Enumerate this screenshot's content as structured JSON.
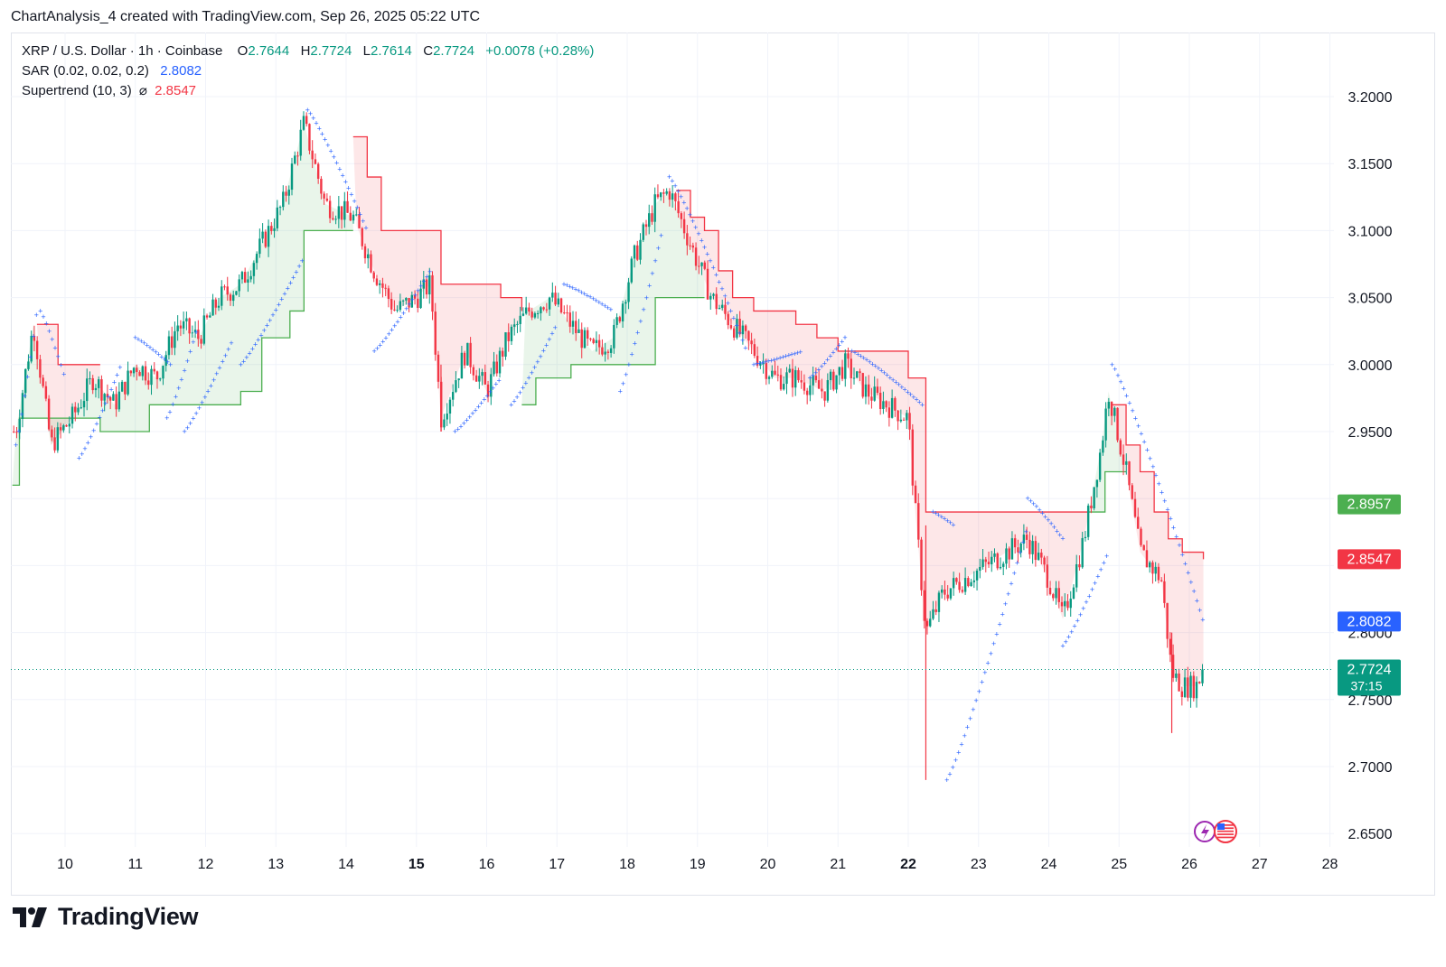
{
  "header": {
    "text": "ChartAnalysis_4 created with TradingView.com, Sep 26, 2025 05:22 UTC"
  },
  "legend": {
    "symbol": "XRP / U.S. Dollar · 1h · Coinbase",
    "o_key": "O",
    "o_val": "2.7644",
    "h_key": "H",
    "h_val": "2.7724",
    "l_key": "L",
    "l_val": "2.7614",
    "c_key": "C",
    "c_val": "2.7724",
    "change": "+0.0078 (+0.28%)",
    "sar_label": "SAR (0.02, 0.02, 0.2)",
    "sar_val": "2.8082",
    "st_label": "Supertrend (10, 3)",
    "st_sym": "⌀",
    "st_val": "2.8547"
  },
  "footer": {
    "brand": "TradingView"
  },
  "colors": {
    "up": "#089981",
    "down": "#f23645",
    "sar": "#2962ff",
    "st_up": "#4caf50",
    "st_down": "#f23645",
    "grid": "#f0f3fa"
  },
  "chart_data": {
    "type": "candlestick",
    "symbol": "XRP / U.S. Dollar",
    "interval": "1h",
    "exchange": "Coinbase",
    "ylim": [
      2.63,
      3.22
    ],
    "y_ticks": [
      "3.2000",
      "3.1500",
      "3.1000",
      "3.0500",
      "3.0000",
      "2.9500",
      "2.8000",
      "2.7500",
      "2.7000",
      "2.6500"
    ],
    "x_ticks": [
      {
        "label": "10",
        "day": 10,
        "bold": false
      },
      {
        "label": "11",
        "day": 11,
        "bold": false
      },
      {
        "label": "12",
        "day": 12,
        "bold": false
      },
      {
        "label": "13",
        "day": 13,
        "bold": false
      },
      {
        "label": "14",
        "day": 14,
        "bold": false
      },
      {
        "label": "15",
        "day": 15,
        "bold": true
      },
      {
        "label": "16",
        "day": 16,
        "bold": false
      },
      {
        "label": "17",
        "day": 17,
        "bold": false
      },
      {
        "label": "18",
        "day": 18,
        "bold": false
      },
      {
        "label": "19",
        "day": 19,
        "bold": false
      },
      {
        "label": "20",
        "day": 20,
        "bold": false
      },
      {
        "label": "21",
        "day": 21,
        "bold": false
      },
      {
        "label": "22",
        "day": 22,
        "bold": true
      },
      {
        "label": "23",
        "day": 23,
        "bold": false
      },
      {
        "label": "24",
        "day": 24,
        "bold": false
      },
      {
        "label": "25",
        "day": 25,
        "bold": false
      },
      {
        "label": "26",
        "day": 26,
        "bold": false
      },
      {
        "label": "27",
        "day": 27,
        "bold": false
      },
      {
        "label": "28",
        "day": 28,
        "bold": false
      }
    ],
    "x_range_days": [
      9.25,
      28.0
    ],
    "price_path": [
      [
        9.3,
        2.95
      ],
      [
        9.55,
        3.03
      ],
      [
        9.8,
        2.94
      ],
      [
        10.1,
        2.96
      ],
      [
        10.4,
        2.99
      ],
      [
        10.7,
        2.97
      ],
      [
        11.0,
        3.0
      ],
      [
        11.3,
        2.99
      ],
      [
        11.6,
        3.03
      ],
      [
        11.9,
        3.02
      ],
      [
        12.2,
        3.05
      ],
      [
        12.5,
        3.06
      ],
      [
        12.8,
        3.09
      ],
      [
        13.1,
        3.12
      ],
      [
        13.4,
        3.18
      ],
      [
        13.7,
        3.12
      ],
      [
        14.1,
        3.11
      ],
      [
        14.4,
        3.07
      ],
      [
        14.7,
        3.04
      ],
      [
        15.0,
        3.05
      ],
      [
        15.2,
        3.06
      ],
      [
        15.35,
        2.96
      ],
      [
        15.7,
        3.01
      ],
      [
        16.0,
        2.98
      ],
      [
        16.3,
        3.02
      ],
      [
        16.6,
        3.04
      ],
      [
        16.9,
        3.05
      ],
      [
        17.2,
        3.03
      ],
      [
        17.5,
        3.01
      ],
      [
        17.8,
        3.02
      ],
      [
        18.1,
        3.08
      ],
      [
        18.4,
        3.12
      ],
      [
        18.6,
        3.13
      ],
      [
        18.9,
        3.09
      ],
      [
        19.2,
        3.05
      ],
      [
        19.5,
        3.03
      ],
      [
        19.8,
        3.01
      ],
      [
        20.1,
        2.99
      ],
      [
        20.4,
        2.99
      ],
      [
        20.8,
        2.98
      ],
      [
        21.1,
        3.0
      ],
      [
        21.4,
        2.98
      ],
      [
        21.7,
        2.97
      ],
      [
        22.0,
        2.96
      ],
      [
        22.1,
        2.89
      ],
      [
        22.25,
        2.8
      ],
      [
        22.5,
        2.83
      ],
      [
        22.8,
        2.84
      ],
      [
        23.1,
        2.85
      ],
      [
        23.4,
        2.86
      ],
      [
        23.7,
        2.87
      ],
      [
        24.0,
        2.84
      ],
      [
        24.2,
        2.81
      ],
      [
        24.5,
        2.87
      ],
      [
        24.75,
        2.94
      ],
      [
        24.85,
        2.98
      ],
      [
        25.1,
        2.92
      ],
      [
        25.3,
        2.86
      ],
      [
        25.6,
        2.84
      ],
      [
        25.75,
        2.77
      ],
      [
        25.9,
        2.76
      ],
      [
        26.1,
        2.76
      ],
      [
        26.2,
        2.7724
      ]
    ],
    "last_price": {
      "value": 2.7724,
      "label": "2.7724",
      "countdown": "37:15"
    },
    "indicators": {
      "sar": {
        "name": "SAR (0.02, 0.02, 0.2)",
        "last": 2.8082,
        "label": "2.8082",
        "segments": [
          {
            "from": 9.3,
            "to": 9.6,
            "start": 2.94,
            "end": 3.04
          },
          {
            "from": 9.65,
            "to": 10.0,
            "start": 3.04,
            "end": 2.99
          },
          {
            "from": 10.2,
            "to": 10.8,
            "start": 2.93,
            "end": 3.0
          },
          {
            "from": 11.0,
            "to": 11.5,
            "start": 3.02,
            "end": 3.0
          },
          {
            "from": 11.45,
            "to": 11.9,
            "start": 2.96,
            "end": 3.03
          },
          {
            "from": 11.7,
            "to": 12.4,
            "start": 2.95,
            "end": 3.02
          },
          {
            "from": 12.5,
            "to": 13.4,
            "start": 3.0,
            "end": 3.08
          },
          {
            "from": 13.45,
            "to": 14.3,
            "start": 3.19,
            "end": 3.1
          },
          {
            "from": 14.4,
            "to": 15.2,
            "start": 3.01,
            "end": 3.07
          },
          {
            "from": 15.55,
            "to": 16.2,
            "start": 2.95,
            "end": 2.99
          },
          {
            "from": 16.35,
            "to": 17.0,
            "start": 2.97,
            "end": 3.03
          },
          {
            "from": 17.1,
            "to": 17.8,
            "start": 3.06,
            "end": 3.04
          },
          {
            "from": 17.9,
            "to": 18.5,
            "start": 2.98,
            "end": 3.1
          },
          {
            "from": 18.6,
            "to": 19.7,
            "start": 3.14,
            "end": 3.01
          },
          {
            "from": 19.8,
            "to": 20.5,
            "start": 3.0,
            "end": 3.01
          },
          {
            "from": 20.6,
            "to": 21.1,
            "start": 2.99,
            "end": 3.02
          },
          {
            "from": 21.2,
            "to": 22.2,
            "start": 3.01,
            "end": 2.97
          },
          {
            "from": 22.35,
            "to": 22.65,
            "start": 2.89,
            "end": 2.88
          },
          {
            "from": 22.55,
            "to": 23.7,
            "start": 2.69,
            "end": 2.88
          },
          {
            "from": 23.7,
            "to": 24.2,
            "start": 2.9,
            "end": 2.87
          },
          {
            "from": 24.2,
            "to": 24.85,
            "start": 2.79,
            "end": 2.86
          },
          {
            "from": 24.9,
            "to": 26.2,
            "start": 3.0,
            "end": 2.8082
          }
        ]
      },
      "supertrend": {
        "name": "Supertrend (10, 3)",
        "last": 2.8547,
        "label": "2.8547",
        "up_label": "2.8957",
        "up_value": 2.8957,
        "down_segments": [
          [
            [
              9.6,
              3.03
            ],
            [
              9.9,
              3.0
            ],
            [
              10.5,
              3.0
            ]
          ],
          [
            [
              14.1,
              3.17
            ],
            [
              14.3,
              3.14
            ],
            [
              14.5,
              3.1
            ],
            [
              15.3,
              3.1
            ],
            [
              15.35,
              3.06
            ],
            [
              16.1,
              3.06
            ],
            [
              16.2,
              3.05
            ],
            [
              16.5,
              3.04
            ]
          ],
          [
            [
              18.7,
              3.13
            ],
            [
              18.9,
              3.11
            ],
            [
              19.1,
              3.1
            ],
            [
              19.3,
              3.07
            ],
            [
              19.5,
              3.05
            ],
            [
              19.8,
              3.04
            ],
            [
              20.0,
              3.04
            ],
            [
              20.4,
              3.03
            ],
            [
              20.7,
              3.02
            ],
            [
              21.0,
              3.01
            ],
            [
              21.9,
              3.01
            ],
            [
              22.0,
              2.99
            ],
            [
              22.25,
              2.89
            ],
            [
              24.55,
              2.89
            ]
          ],
          [
            [
              24.9,
              2.97
            ],
            [
              25.1,
              2.94
            ],
            [
              25.3,
              2.92
            ],
            [
              25.5,
              2.89
            ],
            [
              25.7,
              2.87
            ],
            [
              25.9,
              2.86
            ],
            [
              26.2,
              2.8547
            ]
          ]
        ],
        "up_segments": [
          [
            [
              9.25,
              2.91
            ],
            [
              9.35,
              2.96
            ],
            [
              10.5,
              2.95
            ],
            [
              10.9,
              2.95
            ],
            [
              11.2,
              2.97
            ],
            [
              11.8,
              2.97
            ],
            [
              12.5,
              2.98
            ],
            [
              12.8,
              3.02
            ],
            [
              13.2,
              3.04
            ],
            [
              13.4,
              3.1
            ],
            [
              14.1,
              3.1
            ]
          ],
          [
            [
              16.5,
              2.97
            ],
            [
              16.7,
              2.99
            ],
            [
              17.2,
              3.0
            ],
            [
              17.8,
              3.0
            ],
            [
              18.4,
              3.05
            ],
            [
              19.1,
              3.05
            ]
          ],
          [
            [
              24.55,
              2.89
            ],
            [
              24.8,
              2.92
            ],
            [
              25.1,
              2.92
            ]
          ]
        ]
      }
    }
  }
}
